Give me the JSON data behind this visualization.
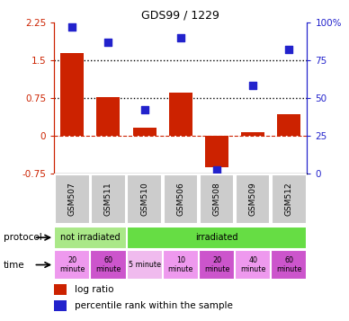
{
  "title": "GDS99 / 1229",
  "samples": [
    "GSM507",
    "GSM511",
    "GSM510",
    "GSM506",
    "GSM508",
    "GSM509",
    "GSM512"
  ],
  "log_ratio": [
    1.65,
    0.77,
    0.15,
    0.85,
    -0.62,
    0.07,
    0.42
  ],
  "percentile_rank": [
    97,
    87,
    42,
    90,
    2,
    58,
    82
  ],
  "ylim_left": [
    -0.75,
    2.25
  ],
  "ylim_right": [
    0,
    100
  ],
  "left_ticks": [
    -0.75,
    0,
    0.75,
    1.5,
    2.25
  ],
  "right_ticks": [
    0,
    25,
    50,
    75,
    100
  ],
  "left_tick_labels": [
    "-0.75",
    "0",
    "0.75",
    "1.5",
    "2.25"
  ],
  "right_tick_labels": [
    "0",
    "25",
    "50",
    "75",
    "100%"
  ],
  "bar_color": "#cc2200",
  "dot_color": "#2222cc",
  "bar_width": 0.65,
  "dot_size": 40,
  "protocol_color_notirr": "#aae888",
  "protocol_color_irr": "#66dd44",
  "time_colors": [
    "#ee99ee",
    "#cc55cc",
    "#f0bbee",
    "#ee99ee",
    "#cc55cc",
    "#ee99ee",
    "#cc55cc"
  ],
  "time_labels": [
    "20\nminute",
    "60\nminute",
    "5 minute",
    "10\nminute",
    "20\nminute",
    "40\nminute",
    "60\nminute"
  ],
  "gsm_bg": "#cccccc",
  "bg_color": "#ffffff"
}
